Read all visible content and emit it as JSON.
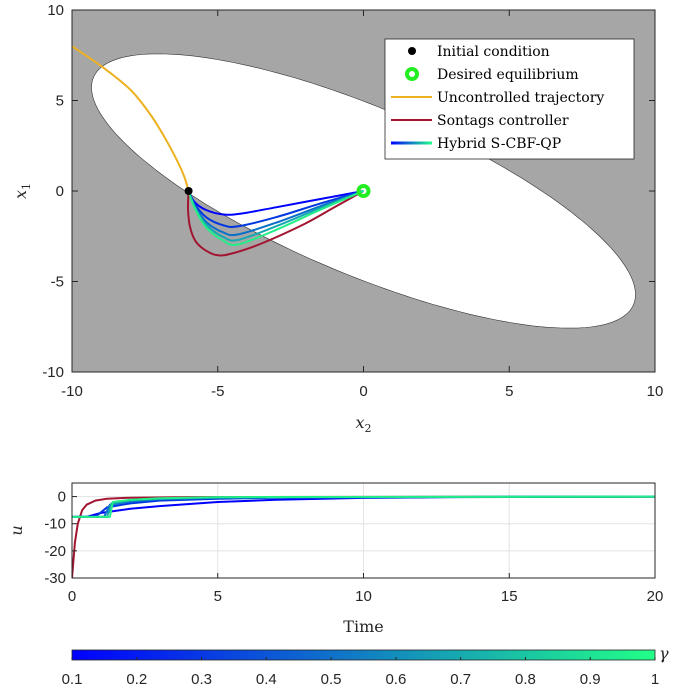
{
  "chart_data": [
    {
      "type": "line",
      "xlabel": "x_2",
      "ylabel": "x_1",
      "xlim": [
        -10,
        10
      ],
      "ylim": [
        -10,
        10
      ],
      "xticks": [
        -10,
        -5,
        0,
        5,
        10
      ],
      "yticks": [
        -10,
        -5,
        0,
        5,
        10
      ],
      "grid": false,
      "legend_placement": "top-right",
      "legend": [
        {
          "label": "Initial condition",
          "marker": "dot",
          "color": "#000000"
        },
        {
          "label": "Desired equilibrium",
          "marker": "ring",
          "color": "#22ee22"
        },
        {
          "label": "Uncontrolled trajectory",
          "marker": "line",
          "color": "#edb120"
        },
        {
          "label": "Sontags controller",
          "marker": "line",
          "color": "#a2142f"
        },
        {
          "label": "Hybrid S-CBF-QP",
          "marker": "gradient",
          "color": "#0000ff"
        }
      ],
      "unsafe_color": "#a6a6a6",
      "initial_condition": [
        -6,
        0
      ],
      "equilibrium": [
        0,
        0
      ],
      "series": [
        {
          "color": "#edb120",
          "points": [
            [
              -10,
              8
            ],
            [
              -9,
              6.9
            ],
            [
              -8,
              5.6
            ],
            [
              -7.3,
              4.2
            ],
            [
              -6.8,
              2.9
            ],
            [
              -6.4,
              1.7
            ],
            [
              -6.15,
              0.8
            ],
            [
              -6,
              0
            ]
          ]
        },
        {
          "color": "#a2142f",
          "points": [
            [
              -6,
              0
            ],
            [
              -6.02,
              -1
            ],
            [
              -5.95,
              -2
            ],
            [
              -5.75,
              -2.8
            ],
            [
              -5.4,
              -3.3
            ],
            [
              -5,
              -3.55
            ],
            [
              -4.5,
              -3.45
            ],
            [
              -3.5,
              -2.9
            ],
            [
              -2,
              -1.8
            ],
            [
              -1,
              -0.9
            ],
            [
              0,
              0
            ]
          ]
        },
        {
          "gamma": 0.1,
          "color": "#0000ff",
          "points": [
            [
              -6,
              0
            ],
            [
              -5.8,
              -0.6
            ],
            [
              -5.4,
              -1.05
            ],
            [
              -4.8,
              -1.3
            ],
            [
              -4.2,
              -1.25
            ],
            [
              -3,
              -0.9
            ],
            [
              -1.5,
              -0.45
            ],
            [
              0,
              0
            ]
          ]
        },
        {
          "gamma": 0.3,
          "color": "#0038e0",
          "points": [
            [
              -6,
              0
            ],
            [
              -5.8,
              -0.7
            ],
            [
              -5.4,
              -1.45
            ],
            [
              -4.8,
              -1.9
            ],
            [
              -4.3,
              -1.95
            ],
            [
              -3,
              -1.45
            ],
            [
              -1.5,
              -0.7
            ],
            [
              0,
              0
            ]
          ]
        },
        {
          "gamma": 0.5,
          "color": "#0a6fc8",
          "points": [
            [
              -6,
              0
            ],
            [
              -5.8,
              -0.8
            ],
            [
              -5.4,
              -1.7
            ],
            [
              -4.8,
              -2.3
            ],
            [
              -4.3,
              -2.4
            ],
            [
              -3,
              -1.75
            ],
            [
              -1.5,
              -0.85
            ],
            [
              0,
              0
            ]
          ]
        },
        {
          "gamma": 0.7,
          "color": "#16a8b0",
          "points": [
            [
              -6,
              0
            ],
            [
              -5.8,
              -0.85
            ],
            [
              -5.4,
              -1.85
            ],
            [
              -4.8,
              -2.55
            ],
            [
              -4.3,
              -2.7
            ],
            [
              -3,
              -1.95
            ],
            [
              -1.5,
              -0.95
            ],
            [
              0,
              0
            ]
          ]
        },
        {
          "gamma": 1.0,
          "color": "#22ee88",
          "points": [
            [
              -6,
              0
            ],
            [
              -5.8,
              -0.9
            ],
            [
              -5.4,
              -2.0
            ],
            [
              -4.8,
              -2.75
            ],
            [
              -4.3,
              -2.95
            ],
            [
              -3,
              -2.15
            ],
            [
              -1.5,
              -1.05
            ],
            [
              0,
              0
            ]
          ]
        }
      ]
    },
    {
      "type": "line",
      "xlabel": "Time",
      "ylabel": "u",
      "xlim": [
        0,
        20
      ],
      "ylim": [
        -30,
        5
      ],
      "xticks": [
        0,
        5,
        10,
        15,
        20
      ],
      "yticks": [
        -30,
        -20,
        -10,
        0
      ],
      "grid": true,
      "series": [
        {
          "color": "#a2142f",
          "points": [
            [
              0,
              -30
            ],
            [
              0.1,
              -17
            ],
            [
              0.2,
              -10
            ],
            [
              0.35,
              -5
            ],
            [
              0.5,
              -3
            ],
            [
              0.8,
              -1.5
            ],
            [
              1.2,
              -0.8
            ],
            [
              2,
              -0.4
            ],
            [
              4,
              -0.2
            ],
            [
              20,
              0
            ]
          ]
        },
        {
          "gamma": 0.1,
          "color": "#0000ff",
          "points": [
            [
              0,
              -7.5
            ],
            [
              0.5,
              -7.5
            ],
            [
              1,
              -6
            ],
            [
              2,
              -4.5
            ],
            [
              3,
              -3.5
            ],
            [
              5,
              -2
            ],
            [
              7,
              -1.2
            ],
            [
              10,
              -0.5
            ],
            [
              13,
              -0.2
            ],
            [
              20,
              0
            ]
          ]
        },
        {
          "gamma": 0.3,
          "color": "#0038e0",
          "points": [
            [
              0,
              -7.5
            ],
            [
              0.8,
              -7.5
            ],
            [
              1.2,
              -4
            ],
            [
              2,
              -2.5
            ],
            [
              3,
              -1.5
            ],
            [
              5,
              -0.8
            ],
            [
              8,
              -0.3
            ],
            [
              20,
              0
            ]
          ]
        },
        {
          "gamma": 0.5,
          "color": "#0a6fc8",
          "points": [
            [
              0,
              -7.5
            ],
            [
              1.1,
              -7.5
            ],
            [
              1.3,
              -3
            ],
            [
              2,
              -1.8
            ],
            [
              3,
              -1
            ],
            [
              5,
              -0.5
            ],
            [
              8,
              -0.2
            ],
            [
              20,
              0
            ]
          ]
        },
        {
          "gamma": 0.7,
          "color": "#16a8b0",
          "points": [
            [
              0,
              -7.5
            ],
            [
              1.2,
              -7.5
            ],
            [
              1.35,
              -2.5
            ],
            [
              2,
              -1.4
            ],
            [
              3,
              -0.8
            ],
            [
              5,
              -0.3
            ],
            [
              20,
              0
            ]
          ]
        },
        {
          "gamma": 1.0,
          "color": "#22ee88",
          "points": [
            [
              0,
              -7.5
            ],
            [
              1.3,
              -7.5
            ],
            [
              1.4,
              -2
            ],
            [
              2,
              -1.2
            ],
            [
              3,
              -0.6
            ],
            [
              5,
              -0.2
            ],
            [
              20,
              0
            ]
          ]
        }
      ]
    },
    {
      "type": "colorbar",
      "label": "γ",
      "range": [
        0.1,
        1
      ],
      "ticks": [
        "0.1",
        "0.2",
        "0.3",
        "0.4",
        "0.5",
        "0.6",
        "0.7",
        "0.8",
        "0.9",
        "1"
      ],
      "colors": [
        "#0000ff",
        "#22ff88"
      ]
    }
  ]
}
